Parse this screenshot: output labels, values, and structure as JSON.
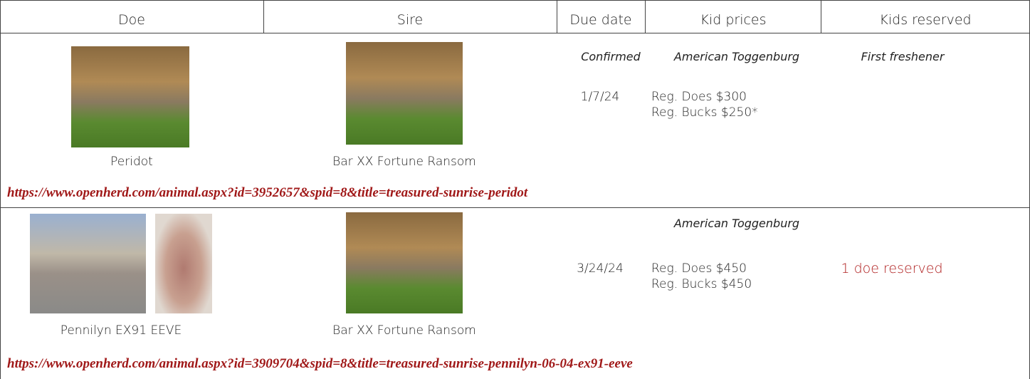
{
  "header": {
    "columns": [
      "Doe",
      "Sire",
      "Due date",
      "Kid prices",
      "Kids reserved"
    ]
  },
  "rows": [
    {
      "doe_name": "Peridot",
      "sire_name": "Bar XX Fortune Ransom",
      "due_note": "Confirmed",
      "breed": "American Toggenburg",
      "doe_note": "First freshener",
      "due_date": "1/7/24",
      "prices": [
        "Reg. Does $300",
        "Reg. Bucks $250*"
      ],
      "url": "https://www.openherd.com/animal.aspx?id=3952657&spid=8&title=treasured-sunrise-peridot"
    },
    {
      "doe_name": "Pennilyn EX91 EEVE",
      "sire_name": "Bar XX Fortune Ransom",
      "breed": "American Toggenburg",
      "due_date": "3/24/24",
      "prices": [
        "Reg. Does $450",
        "Reg. Bucks $450"
      ],
      "reserved": "1 doe reserved",
      "url": "https://www.openherd.com/animal.aspx?id=3909704&spid=8&title=treasured-sunrise-pennilyn-06-04-ex91-eeve"
    }
  ]
}
